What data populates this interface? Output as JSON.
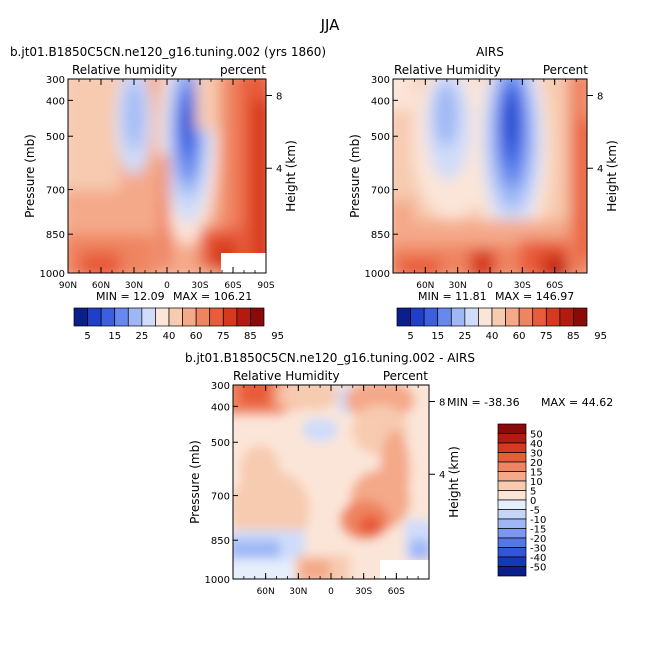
{
  "figure": {
    "title": "JJA"
  },
  "chart_data": [
    {
      "type": "heatmap",
      "id": "model",
      "title": "b.jt01.B1850C5CN.ne120_g16.tuning.002 (yrs 1860)",
      "left_label": "Relative humidity",
      "right_label": "percent",
      "ylabel": "Pressure (mb)",
      "y2label": "Height (km)",
      "y_ticks": [
        "300",
        "400",
        "500",
        "700",
        "850",
        "1000"
      ],
      "y2_ticks": [
        "8",
        "4"
      ],
      "x_ticks": [
        "90N",
        "60N",
        "30N",
        "0",
        "30S",
        "60S",
        "90S"
      ],
      "min_label": "MIN =  12.09",
      "max_label": "MAX = 106.21",
      "min": 12.09,
      "max": 106.21,
      "colorbar_labels": [
        "5",
        "15",
        "25",
        "40",
        "60",
        "75",
        "85",
        "95"
      ],
      "palette": "abs"
    },
    {
      "type": "heatmap",
      "id": "obs",
      "title": "AIRS",
      "left_label": "Relative Humidity",
      "right_label": "Percent",
      "ylabel": "Pressure (mb)",
      "y2label": "Height (km)",
      "y_ticks": [
        "300",
        "400",
        "500",
        "700",
        "850",
        "1000"
      ],
      "y2_ticks": [
        "8",
        "4"
      ],
      "x_ticks": [
        "60N",
        "30N",
        "0",
        "30S",
        "60S"
      ],
      "min_label": "MIN =  11.81",
      "max_label": "MAX = 146.97",
      "min": 11.81,
      "max": 146.97,
      "colorbar_labels": [
        "5",
        "15",
        "25",
        "40",
        "60",
        "75",
        "85",
        "95"
      ],
      "palette": "abs"
    },
    {
      "type": "heatmap",
      "id": "diff",
      "title": "b.jt01.B1850C5CN.ne120_g16.tuning.002 - AIRS",
      "left_label": "Relative Humidity",
      "right_label": "Percent",
      "ylabel": "Pressure (mb)",
      "y2label": "Height (km)",
      "y_ticks": [
        "300",
        "400",
        "500",
        "700",
        "850",
        "1000"
      ],
      "y2_ticks": [
        "8",
        "4"
      ],
      "x_ticks": [
        "60N",
        "30N",
        "0",
        "30S",
        "60S"
      ],
      "min_label": "MIN = -38.36",
      "max_label": "MAX =  44.62",
      "min": -38.36,
      "max": 44.62,
      "colorbar_labels": [
        "50",
        "40",
        "30",
        "20",
        "15",
        "10",
        "5",
        "0",
        "-5",
        "-10",
        "-15",
        "-20",
        "-30",
        "-40",
        "-50"
      ],
      "palette": "diff"
    }
  ],
  "colors": {
    "abs": [
      "#0a1e8c",
      "#1f3fc8",
      "#3b5fe0",
      "#6688ef",
      "#9fb8f5",
      "#cfdcfa",
      "#fbe5d8",
      "#f7cbb0",
      "#f4a989",
      "#ef8461",
      "#e85c3a",
      "#d63a1e",
      "#b41b10",
      "#8a0a0a"
    ],
    "diff": [
      "#8a0a0a",
      "#b41b10",
      "#d63a1e",
      "#e85c3a",
      "#ef8461",
      "#f4a989",
      "#f7cbb0",
      "#fbe5d8",
      "#e6eefc",
      "#c6d6f8",
      "#9fb8f5",
      "#7a98ee",
      "#5577e4",
      "#3356d4",
      "#1637b8",
      "#0a1e8c"
    ]
  }
}
